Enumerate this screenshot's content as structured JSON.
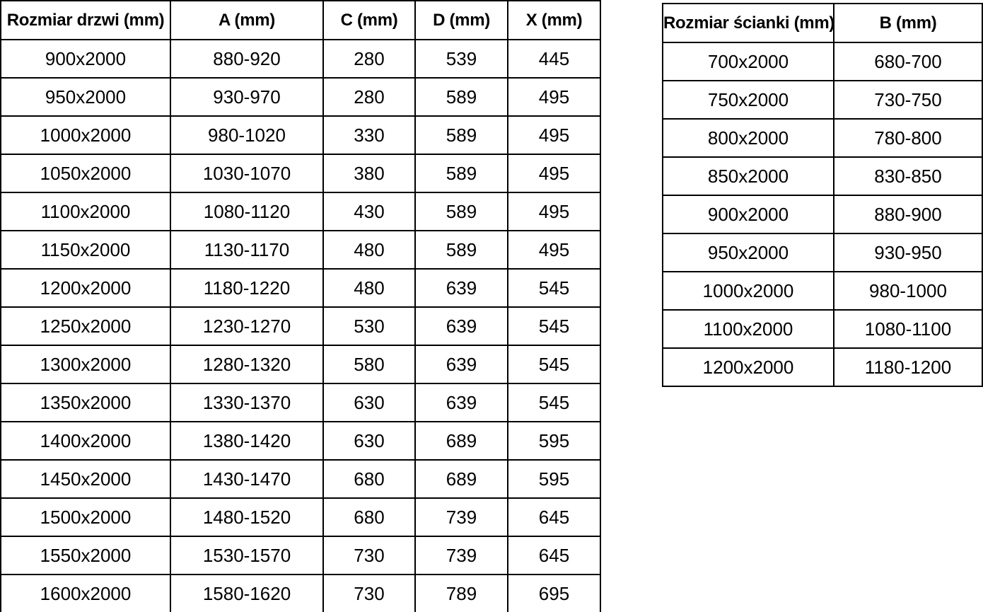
{
  "colors": {
    "background": "#ffffff",
    "border": "#000000",
    "text": "#000000"
  },
  "doors_table": {
    "name": "doors-dimensions-table",
    "headers": [
      "Rozmiar drzwi (mm)",
      "A (mm)",
      "C (mm)",
      "D (mm)",
      "X (mm)"
    ],
    "rows": [
      [
        "900x2000",
        "880-920",
        "280",
        "539",
        "445"
      ],
      [
        "950x2000",
        "930-970",
        "280",
        "589",
        "495"
      ],
      [
        "1000x2000",
        "980-1020",
        "330",
        "589",
        "495"
      ],
      [
        "1050x2000",
        "1030-1070",
        "380",
        "589",
        "495"
      ],
      [
        "1100x2000",
        "1080-1120",
        "430",
        "589",
        "495"
      ],
      [
        "1150x2000",
        "1130-1170",
        "480",
        "589",
        "495"
      ],
      [
        "1200x2000",
        "1180-1220",
        "480",
        "639",
        "545"
      ],
      [
        "1250x2000",
        "1230-1270",
        "530",
        "639",
        "545"
      ],
      [
        "1300x2000",
        "1280-1320",
        "580",
        "639",
        "545"
      ],
      [
        "1350x2000",
        "1330-1370",
        "630",
        "639",
        "545"
      ],
      [
        "1400x2000",
        "1380-1420",
        "630",
        "689",
        "595"
      ],
      [
        "1450x2000",
        "1430-1470",
        "680",
        "689",
        "595"
      ],
      [
        "1500x2000",
        "1480-1520",
        "680",
        "739",
        "645"
      ],
      [
        "1550x2000",
        "1530-1570",
        "730",
        "739",
        "645"
      ],
      [
        "1600x2000",
        "1580-1620",
        "730",
        "789",
        "695"
      ]
    ]
  },
  "walls_table": {
    "name": "walls-dimensions-table",
    "headers": [
      "Rozmiar ścianki (mm)",
      "B (mm)"
    ],
    "rows": [
      [
        "700x2000",
        "680-700"
      ],
      [
        "750x2000",
        "730-750"
      ],
      [
        "800x2000",
        "780-800"
      ],
      [
        "850x2000",
        "830-850"
      ],
      [
        "900x2000",
        "880-900"
      ],
      [
        "950x2000",
        "930-950"
      ],
      [
        "1000x2000",
        "980-1000"
      ],
      [
        "1100x2000",
        "1080-1100"
      ],
      [
        "1200x2000",
        "1180-1200"
      ]
    ]
  }
}
